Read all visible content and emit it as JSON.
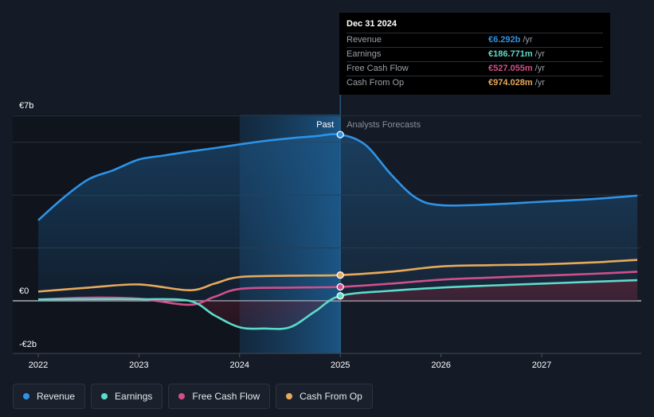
{
  "chart_data": {
    "type": "line",
    "title": "",
    "xlabel": "",
    "ylabel": "",
    "x_ticks": [
      "2022",
      "2023",
      "2024",
      "2025",
      "2026",
      "2027"
    ],
    "y_ticks": [
      {
        "value": 7,
        "label": "€7b"
      },
      {
        "value": 0,
        "label": "€0"
      },
      {
        "value": -2,
        "label": "-€2b"
      }
    ],
    "ylim": [
      -2,
      7
    ],
    "xlim": [
      2021.75,
      2027.95
    ],
    "past_label": "Past",
    "forecast_label": "Analysts Forecasts",
    "past_end": 2025.0,
    "highlight_start": 2024.0,
    "series": [
      {
        "name": "Revenue",
        "color": "#2e93e6",
        "x": [
          2022.0,
          2022.25,
          2022.5,
          2022.75,
          2023.0,
          2023.25,
          2023.5,
          2023.75,
          2024.0,
          2024.25,
          2024.5,
          2024.75,
          2025.0,
          2025.25,
          2025.5,
          2025.75,
          2026.0,
          2026.5,
          2027.0,
          2027.5,
          2027.95
        ],
        "values": [
          3.05,
          3.9,
          4.6,
          4.95,
          5.35,
          5.5,
          5.65,
          5.78,
          5.92,
          6.05,
          6.15,
          6.23,
          6.292,
          5.9,
          4.8,
          3.9,
          3.62,
          3.65,
          3.75,
          3.85,
          3.98
        ]
      },
      {
        "name": "Earnings",
        "color": "#5ddbc9",
        "x": [
          2022.0,
          2022.5,
          2023.0,
          2023.5,
          2023.75,
          2024.0,
          2024.25,
          2024.5,
          2024.75,
          2025.0,
          2025.5,
          2026.0,
          2026.5,
          2027.0,
          2027.5,
          2027.95
        ],
        "values": [
          0.05,
          0.06,
          0.06,
          0.0,
          -0.55,
          -1.0,
          -1.05,
          -1.0,
          -0.4,
          0.187,
          0.38,
          0.5,
          0.58,
          0.65,
          0.72,
          0.78
        ]
      },
      {
        "name": "Free Cash Flow",
        "color": "#d14f8a",
        "x": [
          2022.0,
          2022.5,
          2023.0,
          2023.5,
          2023.75,
          2024.0,
          2024.5,
          2025.0,
          2025.5,
          2026.0,
          2026.5,
          2027.0,
          2027.5,
          2027.95
        ],
        "values": [
          0.05,
          0.12,
          0.08,
          -0.15,
          0.15,
          0.45,
          0.5,
          0.527,
          0.65,
          0.8,
          0.88,
          0.95,
          1.02,
          1.1
        ]
      },
      {
        "name": "Cash From Op",
        "color": "#e8a95b",
        "x": [
          2022.0,
          2022.5,
          2023.0,
          2023.5,
          2023.75,
          2024.0,
          2024.5,
          2025.0,
          2025.5,
          2026.0,
          2026.5,
          2027.0,
          2027.5,
          2027.95
        ],
        "values": [
          0.35,
          0.5,
          0.62,
          0.4,
          0.65,
          0.9,
          0.95,
          0.974,
          1.1,
          1.3,
          1.35,
          1.38,
          1.45,
          1.55
        ]
      }
    ]
  },
  "tooltip": {
    "date": "Dec 31 2024",
    "rows": [
      {
        "label": "Revenue",
        "value": "€6.292b",
        "unit": "/yr",
        "color": "#2e93e6"
      },
      {
        "label": "Earnings",
        "value": "€186.771m",
        "unit": "/yr",
        "color": "#5ddbc9"
      },
      {
        "label": "Free Cash Flow",
        "value": "€527.055m",
        "unit": "/yr",
        "color": "#d14f8a"
      },
      {
        "label": "Cash From Op",
        "value": "€974.028m",
        "unit": "/yr",
        "color": "#e8a95b"
      }
    ]
  },
  "legend": [
    {
      "label": "Revenue",
      "color": "#2e93e6"
    },
    {
      "label": "Earnings",
      "color": "#5ddbc9"
    },
    {
      "label": "Free Cash Flow",
      "color": "#d14f8a"
    },
    {
      "label": "Cash From Op",
      "color": "#e8a95b"
    }
  ]
}
